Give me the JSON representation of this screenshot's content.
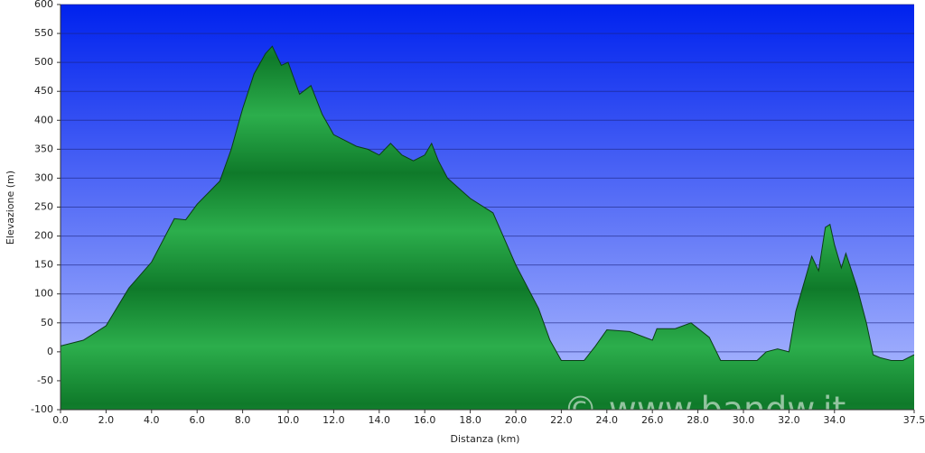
{
  "chart_data": {
    "type": "area",
    "xlabel": "Distanza  (km)",
    "ylabel": "Elevazione (m)",
    "watermark": "© www.bandw.it",
    "x": [
      0,
      1,
      2,
      3,
      4,
      5,
      5.5,
      6,
      7,
      7.5,
      8,
      8.5,
      9,
      9.3,
      9.7,
      10,
      10.5,
      11,
      11.5,
      12,
      13,
      13.5,
      14,
      14.5,
      15,
      15.5,
      16,
      16.3,
      16.6,
      17,
      18,
      19,
      20,
      21,
      21.5,
      22,
      23,
      23.5,
      24,
      25,
      26,
      26.2,
      27,
      27.7,
      28.5,
      29,
      30,
      30.6,
      31,
      31.5,
      32,
      32.3,
      33,
      33.3,
      33.6,
      33.8,
      34,
      34.3,
      34.5,
      35,
      35.4,
      35.7,
      36,
      36.5,
      37,
      37.5
    ],
    "y": [
      10,
      20,
      45,
      110,
      155,
      230,
      228,
      255,
      295,
      350,
      420,
      480,
      515,
      528,
      495,
      500,
      445,
      460,
      410,
      375,
      355,
      350,
      340,
      360,
      340,
      330,
      340,
      360,
      330,
      300,
      265,
      240,
      150,
      75,
      20,
      -15,
      -15,
      10,
      38,
      35,
      20,
      40,
      40,
      50,
      25,
      -15,
      -15,
      -15,
      0,
      5,
      0,
      70,
      165,
      140,
      215,
      220,
      185,
      145,
      170,
      110,
      50,
      -5,
      -10,
      -15,
      -15,
      -5
    ],
    "color": "#1e9a3c",
    "xlim": [
      0,
      37.5
    ],
    "xticks": [
      {
        "value": 0,
        "label": "0.0"
      },
      {
        "value": 2,
        "label": "2.0"
      },
      {
        "value": 4,
        "label": "4.0"
      },
      {
        "value": 6,
        "label": "6.0"
      },
      {
        "value": 8,
        "label": "8.0"
      },
      {
        "value": 10,
        "label": "10.0"
      },
      {
        "value": 12,
        "label": "12.0"
      },
      {
        "value": 14,
        "label": "14.0"
      },
      {
        "value": 16,
        "label": "16.0"
      },
      {
        "value": 18,
        "label": "18.0"
      },
      {
        "value": 20,
        "label": "20.0"
      },
      {
        "value": 22,
        "label": "22.0"
      },
      {
        "value": 24,
        "label": "24.0"
      },
      {
        "value": 26,
        "label": "26.0"
      },
      {
        "value": 28,
        "label": "28.0"
      },
      {
        "value": 30,
        "label": "30.0"
      },
      {
        "value": 32,
        "label": "32.0"
      },
      {
        "value": 34,
        "label": "34.0"
      },
      {
        "value": 37.5,
        "label": "37.5"
      }
    ],
    "ylim": [
      -100,
      600
    ],
    "yticks": [
      -100,
      -50,
      0,
      50,
      100,
      150,
      200,
      250,
      300,
      350,
      400,
      450,
      500,
      550,
      600
    ],
    "grid": true
  }
}
